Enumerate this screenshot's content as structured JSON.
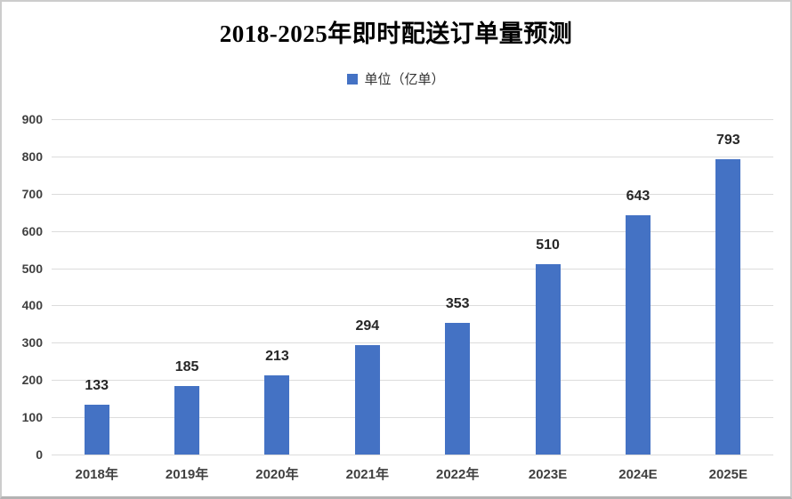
{
  "title": "2018-2025年即时配送订单量预测",
  "legend": {
    "label": "单位（亿单）",
    "marker_color": "#4472C4"
  },
  "chart_data": {
    "type": "bar",
    "title": "2018-2025年即时配送订单量预测",
    "categories": [
      "2018年",
      "2019年",
      "2020年",
      "2021年",
      "2022年",
      "2023E",
      "2024E",
      "2025E"
    ],
    "values": [
      133,
      185,
      213,
      294,
      353,
      510,
      643,
      793
    ],
    "series_name": "单位（亿单）",
    "xlabel": "",
    "ylabel": "",
    "ylim": [
      0,
      900
    ],
    "yticks": [
      0,
      100,
      200,
      300,
      400,
      500,
      600,
      700,
      800,
      900
    ],
    "grid": "horizontal",
    "legend_position": "top",
    "data_labels": true
  },
  "colors": {
    "bar": "#4472C4",
    "gridline": "#dcdcdc",
    "axis_text": "#404040",
    "data_label_text": "#262626",
    "title_text": "#000000"
  }
}
